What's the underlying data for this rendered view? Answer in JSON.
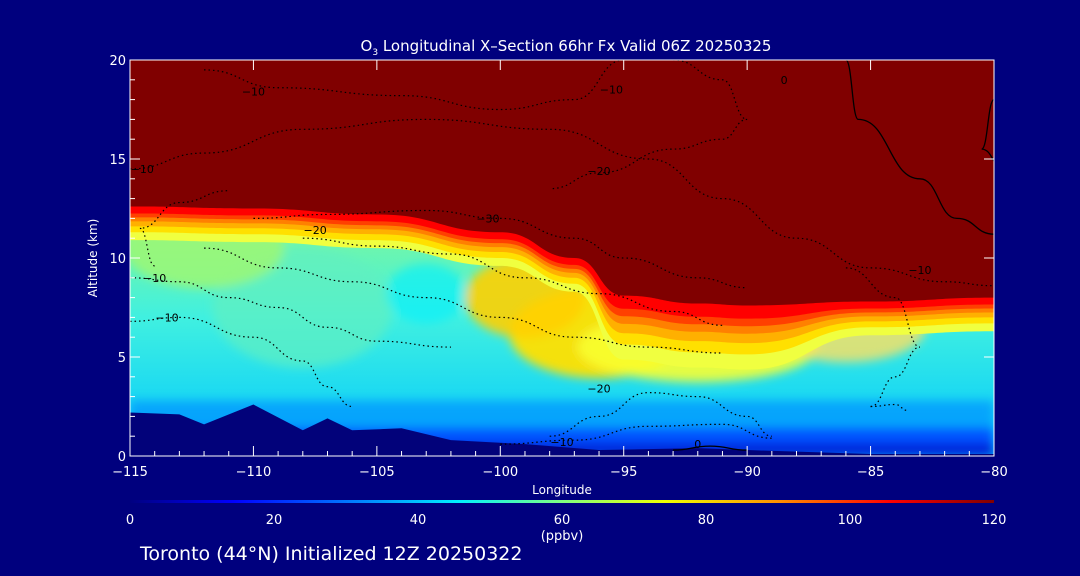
{
  "chart_data": {
    "type": "contour",
    "title_prefix": "O",
    "title_sub": "3",
    "title_rest": " Longitudinal X–Section 66hr  Fx Valid 06Z 20250325",
    "xlabel": "Longitude",
    "ylabel": "Altitude (km)",
    "xlim": [
      -115,
      -80
    ],
    "ylim": [
      0,
      20
    ],
    "x_ticks": [
      -115,
      -110,
      -105,
      -100,
      -95,
      -90,
      -85,
      -80
    ],
    "x_tick_labels": [
      "−115",
      "−110",
      "−105",
      "−100",
      "−95",
      "−90",
      "−85",
      "−80"
    ],
    "y_ticks": [
      0,
      5,
      10,
      15,
      20
    ],
    "y_tick_labels": [
      "0",
      "5",
      "10",
      "15",
      "20"
    ],
    "colorbar": {
      "min": 0,
      "max": 120,
      "ticks": [
        0,
        20,
        40,
        60,
        80,
        100,
        120
      ],
      "tick_labels": [
        "0",
        "20",
        "40",
        "60",
        "80",
        "100",
        "120"
      ],
      "unit_label": "(ppbv)"
    },
    "ozone_field": {
      "description_units": "ppbv",
      "tropopause_height_km": [
        [
          -115,
          12.6
        ],
        [
          -110,
          12.5
        ],
        [
          -105,
          12.2
        ],
        [
          -100,
          11.3
        ],
        [
          -97,
          10.0
        ],
        [
          -95,
          8.1
        ],
        [
          -92,
          7.7
        ],
        [
          -90,
          7.6
        ],
        [
          -85,
          7.8
        ],
        [
          -80,
          8.0
        ]
      ],
      "terrain_height_km": [
        [
          -115,
          2.2
        ],
        [
          -113,
          2.1
        ],
        [
          -112,
          1.6
        ],
        [
          -110,
          2.6
        ],
        [
          -108,
          1.3
        ],
        [
          -107,
          1.9
        ],
        [
          -106,
          1.3
        ],
        [
          -104,
          1.4
        ],
        [
          -102,
          0.8
        ],
        [
          -99,
          0.6
        ],
        [
          -96,
          0.3
        ],
        [
          -92,
          0.4
        ],
        [
          -90,
          0.3
        ],
        [
          -85,
          0.1
        ],
        [
          -80,
          0.1
        ]
      ]
    },
    "contour_labels": [
      {
        "text": "−10",
        "x": -114.5,
        "y": 14.3
      },
      {
        "text": "−10",
        "x": -110,
        "y": 18.2
      },
      {
        "text": "−10",
        "x": -95.5,
        "y": 18.3
      },
      {
        "text": "0",
        "x": -88.5,
        "y": 18.8
      },
      {
        "text": "−20",
        "x": -96,
        "y": 14.2
      },
      {
        "text": "−30",
        "x": -100.5,
        "y": 11.8
      },
      {
        "text": "−20",
        "x": -107.5,
        "y": 11.2
      },
      {
        "text": "−10",
        "x": -114,
        "y": 8.8
      },
      {
        "text": "−10",
        "x": -113.5,
        "y": 6.8
      },
      {
        "text": "−10",
        "x": -83,
        "y": 9.2
      },
      {
        "text": "−20",
        "x": -96,
        "y": 3.2
      },
      {
        "text": "−10",
        "x": -97.5,
        "y": 0.5
      },
      {
        "text": "0",
        "x": -92,
        "y": 0.4
      }
    ]
  },
  "footer": {
    "text": "Toronto (44°N) Initialized 12Z 20250322"
  }
}
